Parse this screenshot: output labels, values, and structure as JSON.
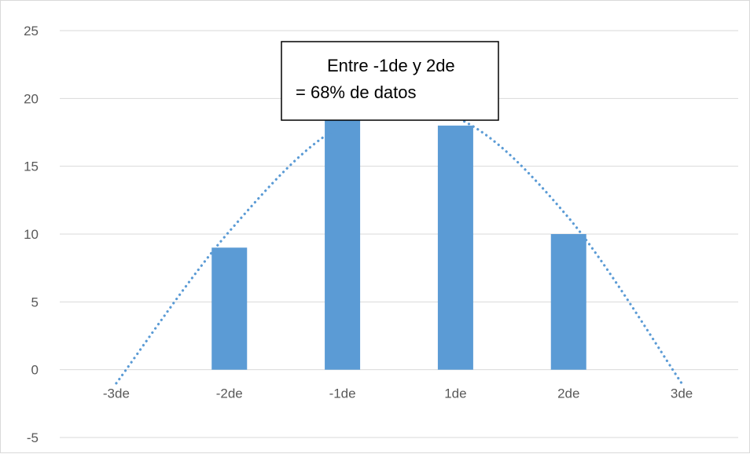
{
  "chart_data": {
    "type": "bar",
    "categories": [
      "-3de",
      "-2de",
      "-1de",
      "1de",
      "2de",
      "3de"
    ],
    "series": [
      {
        "values": [
          0,
          9,
          19,
          18,
          10,
          0
        ],
        "color": "#5b9bd5"
      }
    ],
    "trendline": {
      "style": "dotted",
      "color": "#5b9bd5",
      "points": [
        {
          "category": "-3de",
          "y": -1
        },
        {
          "category": "-2de",
          "y": 10.2
        },
        {
          "category": "-1de",
          "y": 18
        },
        {
          "category": "1de",
          "y": 18.6
        },
        {
          "category": "2de",
          "y": 11.2
        },
        {
          "category": "3de",
          "y": -1
        }
      ]
    },
    "y_ticks": [
      "-5",
      "0",
      "5",
      "10",
      "15",
      "20",
      "25"
    ],
    "ylim": [
      -5,
      25
    ],
    "grid": true,
    "legend": "none",
    "annotation": {
      "line1": "Entre -1de y 2de",
      "line2": "= 68% de datos"
    }
  }
}
